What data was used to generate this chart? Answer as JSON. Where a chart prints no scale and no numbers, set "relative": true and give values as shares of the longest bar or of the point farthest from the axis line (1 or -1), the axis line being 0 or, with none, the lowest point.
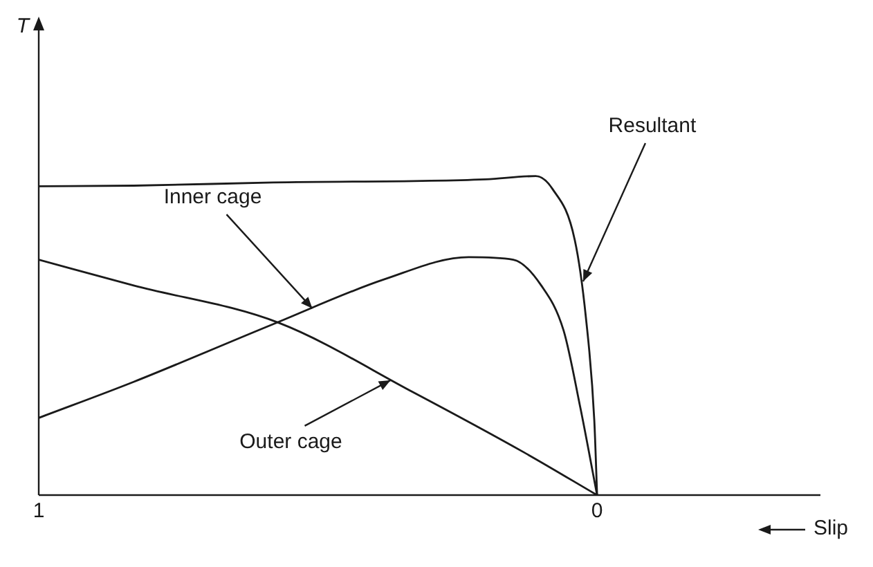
{
  "chart_data": {
    "type": "line",
    "relative": true,
    "xlabel": "Slip",
    "xlim": [
      1,
      -0.4
    ],
    "xticks": [
      1,
      0
    ],
    "grid": false,
    "legend": false,
    "marker": "none",
    "line_style": "solid",
    "series": [
      {
        "color": "#1a1a1a",
        "x": [
          1,
          0.83,
          0.58,
          0.2,
          0.11,
          0.08,
          0.04,
          0.02,
          0.005,
          0
        ],
        "values": [
          0.968,
          0.97,
          0.98,
          0.99,
          1.0,
          0.96,
          0.8,
          0.556,
          0.234,
          0
        ]
      },
      {
        "color": "#1a1a1a",
        "x": [
          1,
          0.83,
          0.58,
          0.38,
          0.23,
          0.15,
          0.1,
          0.06,
          0.03,
          0
        ],
        "values": [
          0.242,
          0.355,
          0.536,
          0.677,
          0.746,
          0.738,
          0.657,
          0.516,
          0.274,
          0
        ]
      },
      {
        "color": "#1a1a1a",
        "x": [
          1,
          0.83,
          0.57,
          0.33,
          0.13,
          0
        ],
        "values": [
          0.738,
          0.657,
          0.54,
          0.323,
          0.133,
          0
        ]
      }
    ],
    "annotations": [
      "T",
      {
        "text": "Resultant",
        "x": 0.025,
        "y": 0.67
      },
      {
        "text": "Inner cage",
        "x": 0.51,
        "y": 0.585
      },
      {
        "text": "Outer cage",
        "x": 0.37,
        "y": 0.36
      }
    ]
  }
}
